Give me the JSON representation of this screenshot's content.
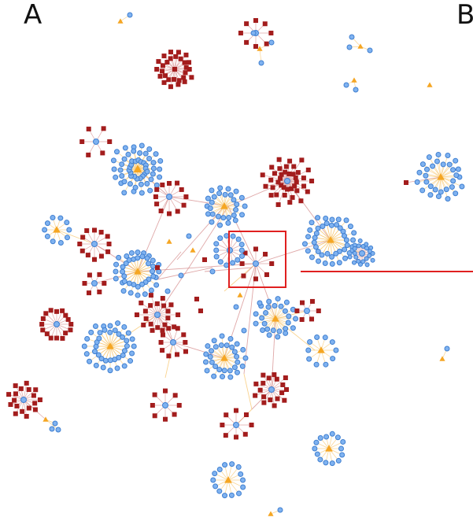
{
  "figure": {
    "panel_a_label": "A",
    "panel_b_label": "B"
  },
  "colors": {
    "background": "#ffffff",
    "square_node": "#a31d1d",
    "circle_node_fill": "#7fb2f0",
    "circle_node_stroke": "#3f7fd0",
    "triangle_node": "#f5a623",
    "edge_from_square": "#d48a8a",
    "edge_from_triangle": "#f7c46a",
    "highlight": "#e02020"
  },
  "legend_shapes": {
    "square": "square-node",
    "circle": "circle-node",
    "triangle": "triangle-node"
  }
}
